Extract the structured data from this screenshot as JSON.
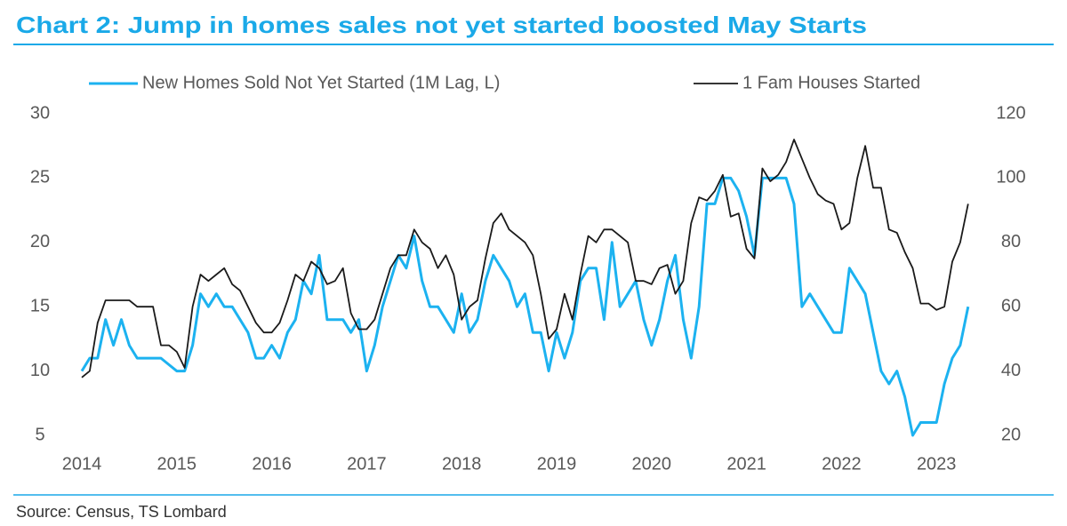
{
  "chart_data": {
    "type": "line",
    "title": "Chart 2: Jump in homes sales not yet started boosted May Starts",
    "source": "Source: Census, TS Lombard",
    "categories": [
      "2014",
      null,
      null,
      null,
      null,
      null,
      null,
      null,
      null,
      null,
      null,
      null,
      "2015",
      null,
      null,
      null,
      null,
      null,
      null,
      null,
      null,
      null,
      null,
      null,
      "2016",
      null,
      null,
      null,
      null,
      null,
      null,
      null,
      null,
      null,
      null,
      null,
      "2017",
      null,
      null,
      null,
      null,
      null,
      null,
      null,
      null,
      null,
      null,
      null,
      "2018",
      null,
      null,
      null,
      null,
      null,
      null,
      null,
      null,
      null,
      null,
      null,
      "2019",
      null,
      null,
      null,
      null,
      null,
      null,
      null,
      null,
      null,
      null,
      null,
      "2020",
      null,
      null,
      null,
      null,
      null,
      null,
      null,
      null,
      null,
      null,
      null,
      "2021",
      null,
      null,
      null,
      null,
      null,
      null,
      null,
      null,
      null,
      null,
      null,
      "2022",
      null,
      null,
      null,
      null,
      null,
      null,
      null,
      null,
      null,
      null,
      null,
      "2023",
      null,
      null,
      null,
      null
    ],
    "series": [
      {
        "name": "New Homes Sold Not Yet Started (1M Lag, L)",
        "color": "#1cb2f0",
        "axis": "y",
        "values": [
          10,
          11,
          11,
          14,
          12,
          14,
          12,
          11,
          11,
          11,
          11,
          10.5,
          10,
          10,
          12,
          16,
          15,
          16,
          15,
          15,
          14,
          13,
          11,
          11,
          12,
          11,
          13,
          14,
          17,
          16,
          19,
          14,
          14,
          14,
          13,
          14,
          10,
          12,
          15,
          17,
          19,
          18,
          20.5,
          17,
          15,
          15,
          14,
          13,
          16,
          13,
          14,
          17,
          19,
          18,
          17,
          15,
          16,
          13,
          13,
          10,
          13,
          11,
          13,
          17,
          18,
          18,
          14,
          20,
          15,
          16,
          17,
          14,
          12,
          14,
          17,
          19,
          14,
          11,
          15,
          23,
          23,
          25,
          25,
          24,
          22,
          19,
          25,
          25,
          25,
          25,
          23,
          15,
          16,
          15,
          14,
          13,
          13,
          18,
          17,
          16,
          13,
          10,
          9,
          10,
          8,
          5,
          6,
          6,
          6,
          9,
          11,
          12,
          15
        ]
      },
      {
        "name": "1 Fam Houses Started",
        "color": "#1a1a1a",
        "axis": "y2",
        "values": [
          38,
          40,
          55,
          62,
          62,
          62,
          62,
          60,
          60,
          60,
          48,
          48,
          46,
          41,
          60,
          70,
          68,
          70,
          72,
          67,
          65,
          60,
          55,
          52,
          52,
          55,
          62,
          70,
          68,
          74,
          72,
          67,
          68,
          72,
          58,
          53,
          53,
          56,
          64,
          72,
          76,
          76,
          84,
          80,
          78,
          72,
          76,
          70,
          56,
          60,
          62,
          75,
          86,
          89,
          84,
          82,
          80,
          76,
          64,
          50,
          53,
          64,
          56,
          70,
          82,
          80,
          84,
          84,
          82,
          80,
          68,
          68,
          67,
          72,
          73,
          64,
          68,
          86,
          94,
          93,
          96,
          101,
          88,
          89,
          78,
          75,
          103,
          99,
          101,
          105,
          112,
          106,
          100,
          95,
          93,
          92,
          84,
          86,
          100,
          110,
          97,
          97,
          84,
          83,
          77,
          72,
          61,
          61,
          59,
          60,
          74,
          80,
          92
        ]
      }
    ],
    "ylim": [
      5,
      30
    ],
    "yticks": [
      5,
      10,
      15,
      20,
      25,
      30
    ],
    "y2lim": [
      20,
      120
    ],
    "y2ticks": [
      20,
      40,
      60,
      80,
      100,
      120
    ],
    "grid": false,
    "legend": "top"
  }
}
